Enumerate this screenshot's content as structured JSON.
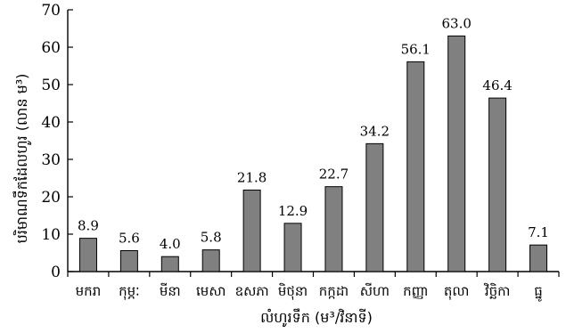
{
  "chart_data": {
    "type": "bar",
    "categories": [
      "មករា",
      "កុម្ភៈ",
      "មីនា",
      "មេសា",
      "ឧសភា",
      "មិថុនា",
      "កក្កដា",
      "សីហា",
      "កញ្ញា",
      "តុលា",
      "វិច្ឆិកា",
      "ធ្នូ"
    ],
    "values": [
      8.9,
      5.6,
      4.0,
      5.8,
      21.8,
      12.9,
      22.7,
      34.2,
      56.1,
      63.0,
      46.4,
      7.1
    ],
    "value_labels": [
      "8.9",
      "5.6",
      "4.0",
      "5.8",
      "21.8",
      "12.9",
      "22.7",
      "34.2",
      "56.1",
      "63.0",
      "46.4",
      "7.1"
    ],
    "title": "",
    "xlabel": "លំហូរទឹក (ម³/វិនាទី)",
    "ylabel": "បរិមាណទឹកដែលហូរ (លាន ម³)",
    "ylim": [
      0,
      70
    ],
    "yticks": [
      0,
      10,
      20,
      30,
      40,
      50,
      60,
      70
    ],
    "grid": false,
    "legend": "none",
    "bar_color": "#808080"
  }
}
